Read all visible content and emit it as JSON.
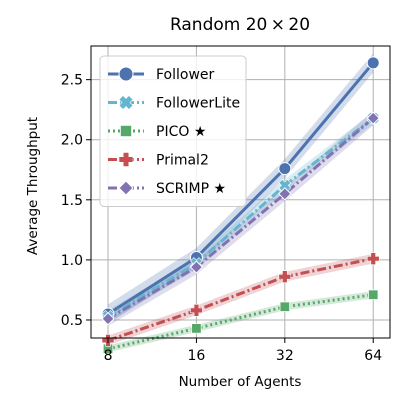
{
  "chart_data": {
    "type": "line",
    "title": "Random 20 × 20",
    "xlabel": "Number of Agents",
    "ylabel": "Average Throughput",
    "x_scale": "log2",
    "categories": [
      "8",
      "16",
      "32",
      "64"
    ],
    "x": [
      8,
      16,
      32,
      64
    ],
    "xlim": [
      7,
      73
    ],
    "ylim": [
      0.35,
      2.78
    ],
    "y_ticks": [
      "0.5",
      "1.0",
      "1.5",
      "2.0",
      "2.5"
    ],
    "y_tick_values": [
      0.5,
      1.0,
      1.5,
      2.0,
      2.5
    ],
    "grid": true,
    "legend_position": "top-left",
    "series": [
      {
        "name": "Follower",
        "values": [
          0.55,
          1.02,
          1.76,
          2.64
        ],
        "color": "#4c72b0",
        "dash": "solid",
        "marker": "circle",
        "band": 0.08
      },
      {
        "name": "FollowerLite",
        "values": [
          0.53,
          0.97,
          1.62,
          2.18
        ],
        "color": "#64b5cd",
        "dash": "dashdot",
        "marker": "x-cross",
        "band": 0.05
      },
      {
        "name": "PICO ★",
        "values": [
          0.26,
          0.43,
          0.61,
          0.71
        ],
        "color": "#55a868",
        "dash": "dotted",
        "marker": "square",
        "band": 0.03
      },
      {
        "name": "Primal2",
        "values": [
          0.33,
          0.58,
          0.86,
          1.01
        ],
        "color": "#c44e52",
        "dash": "dashdot",
        "marker": "plus",
        "band": 0.04
      },
      {
        "name": "SCRIMP ★",
        "values": [
          0.51,
          0.94,
          1.55,
          2.18
        ],
        "color": "#8172b2",
        "dash": "dashdot",
        "marker": "diamond",
        "band": 0.06
      }
    ]
  }
}
